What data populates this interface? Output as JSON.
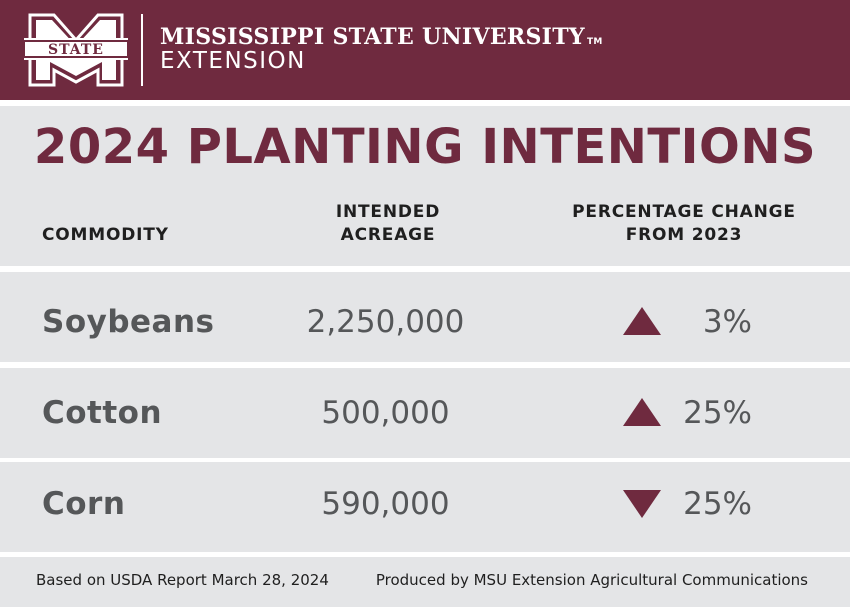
{
  "header": {
    "university": "MISSISSIPPI STATE UNIVERSITY",
    "trademark": "TM",
    "unit": "EXTENSION",
    "logo_text": "STATE",
    "brand_color": "#6f2a3f"
  },
  "title": "2024 PLANTING INTENTIONS",
  "columns": {
    "commodity": "COMMODITY",
    "acreage_line1": "INTENDED",
    "acreage_line2": "ACREAGE",
    "change_line1": "PERCENTAGE CHANGE",
    "change_line2": "FROM 2023"
  },
  "rows": [
    {
      "commodity": "Soybeans",
      "acreage": "2,250,000",
      "change_direction": "up",
      "change": "3%"
    },
    {
      "commodity": "Cotton",
      "acreage": "500,000",
      "change_direction": "up",
      "change": "25%"
    },
    {
      "commodity": "Corn",
      "acreage": "590,000",
      "change_direction": "down",
      "change": "25%"
    }
  ],
  "footer": {
    "source": "Based on USDA Report March 28, 2024",
    "credit": "Produced by MSU Extension Agricultural Communications"
  },
  "colors": {
    "band_gray": "#e4e5e7",
    "value_gray": "#555759",
    "arrow": "#6f2a3f"
  }
}
